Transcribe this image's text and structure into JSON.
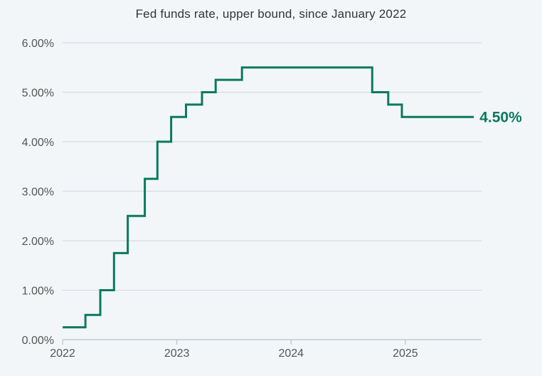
{
  "chart_data": {
    "type": "line",
    "title": "Fed funds rate, upper bound, since January 2022",
    "xlabel": "",
    "ylabel": "",
    "xlim": [
      2022.0,
      2025.667
    ],
    "ylim": [
      0,
      6
    ],
    "grid": true,
    "step": true,
    "y_ticks": [
      0,
      1,
      2,
      3,
      4,
      5,
      6
    ],
    "y_tick_labels": [
      "0.00%",
      "1.00%",
      "2.00%",
      "3.00%",
      "4.00%",
      "5.00%",
      "6.00%"
    ],
    "x_ticks": [
      2022,
      2023,
      2024,
      2025
    ],
    "x_tick_labels": [
      "2022",
      "2023",
      "2024",
      "2025"
    ],
    "series": [
      {
        "color": "#0a7a5e",
        "x": [
          2022.0,
          2022.2,
          2022.33,
          2022.45,
          2022.57,
          2022.72,
          2022.83,
          2022.95,
          2023.08,
          2023.22,
          2023.34,
          2023.57,
          2024.71,
          2024.85,
          2024.97,
          2025.6
        ],
        "y": [
          0.25,
          0.5,
          1.0,
          1.75,
          2.5,
          3.25,
          4.0,
          4.5,
          4.75,
          5.0,
          5.25,
          5.5,
          5.0,
          4.75,
          4.5,
          4.5
        ]
      }
    ],
    "end_label": "4.50%",
    "end_label_color": "#0a7a5e"
  }
}
